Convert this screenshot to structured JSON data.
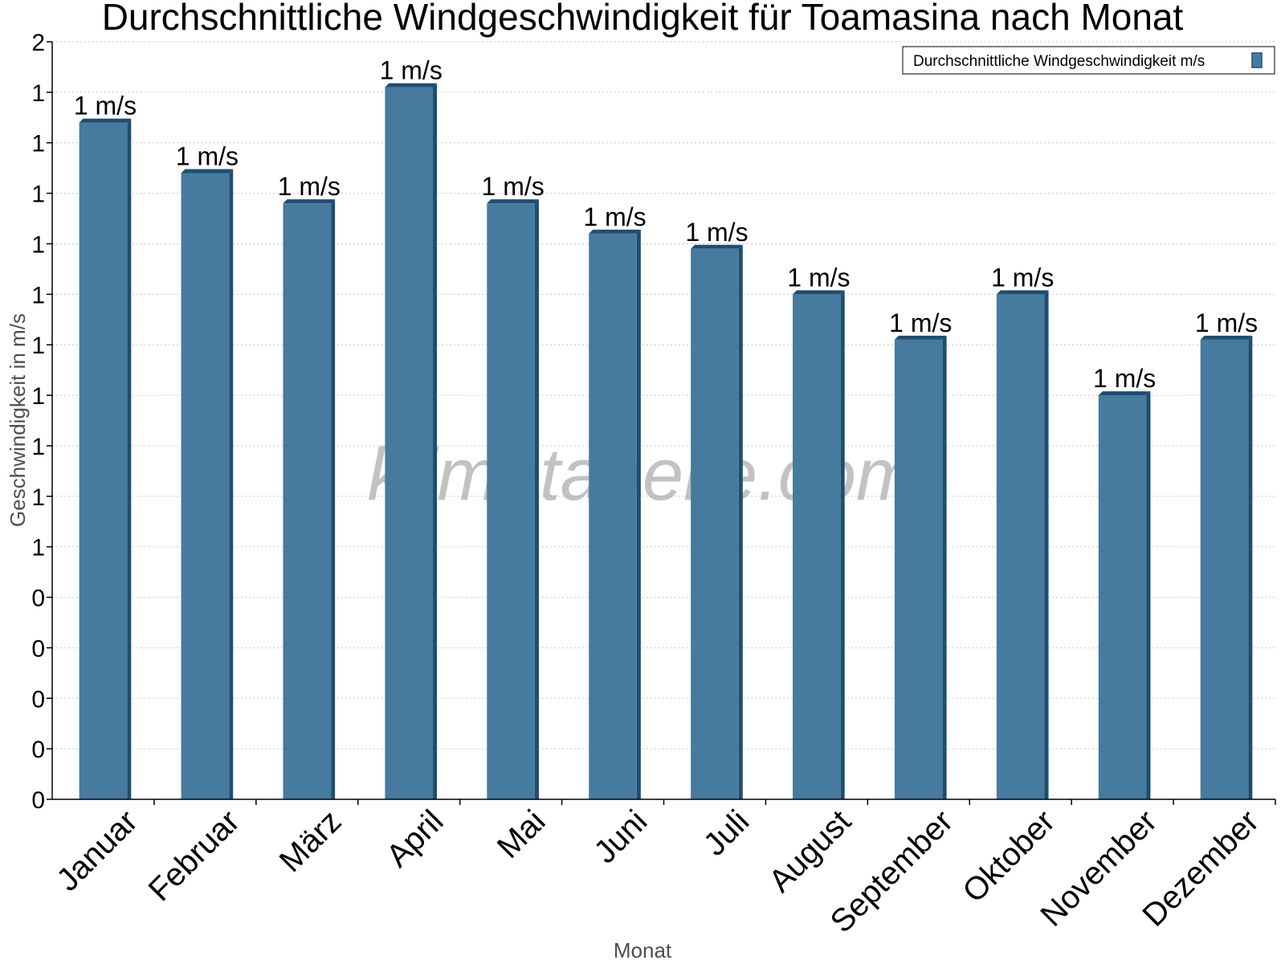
{
  "chart_data": {
    "type": "bar",
    "title": "Durchschnittliche Windgeschwindigkeit für Toamasina nach Monat",
    "xlabel": "Monat",
    "ylabel": "Geschwindigkeit in m/s",
    "categories": [
      "Januar",
      "Februar",
      "März",
      "April",
      "Mai",
      "Juni",
      "Juli",
      "August",
      "September",
      "Oktober",
      "November",
      "Dezember"
    ],
    "series": [
      {
        "name": "Durchschnittliche Windgeschwindigkeit m/s",
        "values": [
          1.34,
          1.24,
          1.18,
          1.41,
          1.18,
          1.12,
          1.09,
          1.0,
          0.91,
          1.0,
          0.8,
          0.91
        ],
        "data_labels": [
          "1 m/s",
          "1 m/s",
          "1 m/s",
          "1 m/s",
          "1 m/s",
          "1 m/s",
          "1 m/s",
          "1 m/s",
          "1 m/s",
          "1 m/s",
          "1 m/s",
          "1 m/s"
        ],
        "color": "#467a9e",
        "side_color": "#1d4e70"
      }
    ],
    "ylim": [
      0,
      1.5
    ],
    "yticks": [
      {
        "value": 0.0,
        "label": "0"
      },
      {
        "value": 0.1,
        "label": "0"
      },
      {
        "value": 0.2,
        "label": "0"
      },
      {
        "value": 0.3,
        "label": "0"
      },
      {
        "value": 0.4,
        "label": "0"
      },
      {
        "value": 0.5,
        "label": "1"
      },
      {
        "value": 0.6,
        "label": "1"
      },
      {
        "value": 0.7,
        "label": "1"
      },
      {
        "value": 0.8,
        "label": "1"
      },
      {
        "value": 0.9,
        "label": "1"
      },
      {
        "value": 1.0,
        "label": "1"
      },
      {
        "value": 1.1,
        "label": "1"
      },
      {
        "value": 1.2,
        "label": "1"
      },
      {
        "value": 1.3,
        "label": "1"
      },
      {
        "value": 1.4,
        "label": "1"
      },
      {
        "value": 1.5,
        "label": "2"
      }
    ],
    "grid": true,
    "legend_position": "top-right",
    "watermark": "klimatabelle.com"
  }
}
